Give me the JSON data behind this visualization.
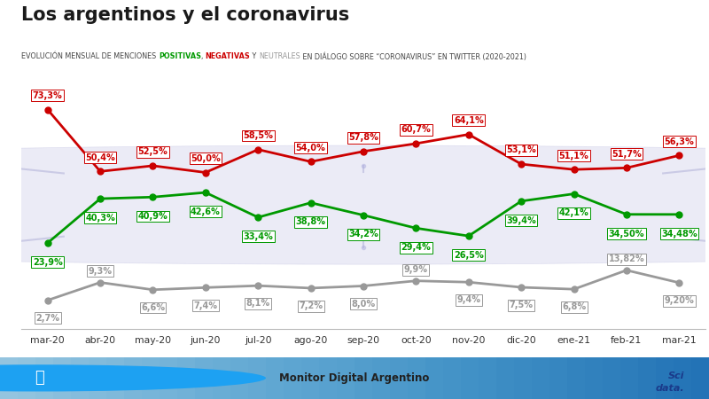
{
  "title": "Los argentinos y el coronavirus",
  "months": [
    "mar-20",
    "abr-20",
    "may-20",
    "jun-20",
    "jul-20",
    "ago-20",
    "sep-20",
    "oct-20",
    "nov-20",
    "dic-20",
    "ene-21",
    "feb-21",
    "mar-21"
  ],
  "negative": [
    73.3,
    50.4,
    52.5,
    50.0,
    58.5,
    54.0,
    57.8,
    60.7,
    64.1,
    53.1,
    51.1,
    51.7,
    56.3
  ],
  "positive": [
    23.9,
    40.3,
    40.9,
    42.6,
    33.4,
    38.8,
    34.2,
    29.4,
    26.5,
    39.4,
    42.1,
    34.5,
    34.48
  ],
  "neutral": [
    2.7,
    9.3,
    6.6,
    7.4,
    8.1,
    7.2,
    8.0,
    9.9,
    9.4,
    7.5,
    6.8,
    13.82,
    9.2
  ],
  "neg_labels": [
    "73,3%",
    "50,4%",
    "52,5%",
    "50,0%",
    "58,5%",
    "54,0%",
    "57,8%",
    "60,7%",
    "64,1%",
    "53,1%",
    "51,1%",
    "51,7%",
    "56,3%"
  ],
  "pos_labels": [
    "23,9%",
    "40,3%",
    "40,9%",
    "42,6%",
    "33,4%",
    "38,8%",
    "34,2%",
    "29,4%",
    "26,5%",
    "39,4%",
    "42,1%",
    "34,50%",
    "34,48%"
  ],
  "neu_labels": [
    "2,7%",
    "9,3%",
    "6,6%",
    "7,4%",
    "8,1%",
    "7,2%",
    "8,0%",
    "9,9%",
    "9,4%",
    "7,5%",
    "6,8%",
    "13,82%",
    "9,20%"
  ],
  "neg_color": "#cc0000",
  "pos_color": "#009900",
  "neu_color": "#999999",
  "bg_color": "#ffffff",
  "footer_bg_top": "#a8e0f5",
  "footer_bg_bot": "#4ab0e8",
  "title_color": "#1a1a1a",
  "subtitle_color": "#444444",
  "subtitle_parts": [
    {
      "text": "EVOLUCIÓN MENSUAL DE MENCIONES ",
      "color": "#444444"
    },
    {
      "text": "POSITIVAS",
      "color": "#009900"
    },
    {
      "text": ", ",
      "color": "#444444"
    },
    {
      "text": "NEGATIVAS",
      "color": "#cc0000"
    },
    {
      "text": " Y ",
      "color": "#444444"
    },
    {
      "text": "NEUTRALES",
      "color": "#999999"
    },
    {
      "text": " EN DIÁLOGO SOBRE “CORONAVIRUS” EN TWITTER (2020-2021)",
      "color": "#444444"
    }
  ]
}
